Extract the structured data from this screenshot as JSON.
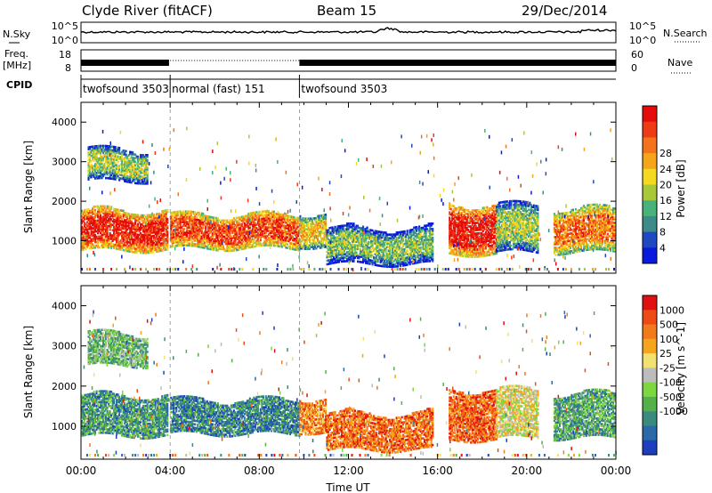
{
  "header": {
    "station": "Clyde River (fitACF)",
    "beam": "Beam 15",
    "date": "29/Dec/2014"
  },
  "left_labels": {
    "nsky": "N.Sky",
    "freq": "Freq.",
    "mhz": "[MHz]",
    "cpid": "CPID"
  },
  "right_labels": {
    "nsearch": "N.Search",
    "nave": "Nave"
  },
  "ticks": {
    "nsky_top": "10^5",
    "nsky_bottom": "10^0",
    "freq_top": "18",
    "freq_bottom": "8",
    "nave_top": "60",
    "nave_bottom": "0",
    "nsearch_top": "10^5",
    "nsearch_bottom": "10^0"
  },
  "cpid": {
    "segments": [
      {
        "label": "twofsound 3503",
        "start": 0,
        "end": 4
      },
      {
        "label": "normal (fast) 151",
        "start": 4,
        "end": 9.8
      },
      {
        "label": "twofsound 3503",
        "start": 9.8,
        "end": 24
      }
    ]
  },
  "chart_data": [
    {
      "type": "heatmap",
      "name": "power",
      "xlabel": "Time UT",
      "ylabel": "Slant Range [km]",
      "x_ticks": [
        "00:00",
        "04:00",
        "08:00",
        "12:00",
        "16:00",
        "20:00",
        "00:00"
      ],
      "xlim": [
        0,
        24
      ],
      "ylim": [
        180,
        4500
      ],
      "y_ticks": [
        1000,
        2000,
        3000,
        4000
      ],
      "colorbar_label": "Power [dB]",
      "colorbar_ticks": [
        "4",
        "8",
        "12",
        "16",
        "20",
        "24",
        "28"
      ],
      "colorbar_colors": [
        "#0a1adc",
        "#1f49c0",
        "#3d8a8a",
        "#49b27a",
        "#a8c838",
        "#f5d820",
        "#f6a41b",
        "#f4721a",
        "#ef3a16",
        "#e50b0b"
      ],
      "regions": [
        {
          "t0": 0,
          "t1": 3.9,
          "r0": 750,
          "r1": 1750,
          "level": 0.92
        },
        {
          "t0": 4.0,
          "t1": 9.8,
          "r0": 800,
          "r1": 1650,
          "level": 0.85
        },
        {
          "t0": 9.8,
          "t1": 11.0,
          "r0": 850,
          "r1": 1700,
          "level": 0.6
        },
        {
          "t0": 11.0,
          "t1": 15.8,
          "r0": 400,
          "r1": 1300,
          "level": 0.4
        },
        {
          "t0": 16.5,
          "t1": 18.6,
          "r0": 650,
          "r1": 1900,
          "level": 0.95
        },
        {
          "t0": 18.6,
          "t1": 20.5,
          "r0": 700,
          "r1": 1900,
          "level": 0.45
        },
        {
          "t0": 21.2,
          "t1": 23.9,
          "r0": 700,
          "r1": 1800,
          "level": 0.75
        },
        {
          "t0": 0.3,
          "t1": 3.0,
          "r0": 2500,
          "r1": 3300,
          "level": 0.45
        }
      ]
    },
    {
      "type": "heatmap",
      "name": "velocity",
      "xlabel": "Time UT",
      "ylabel": "Slant Range [km]",
      "x_ticks": [
        "00:00",
        "04:00",
        "08:00",
        "12:00",
        "16:00",
        "20:00",
        "00:00"
      ],
      "xlim": [
        0,
        24
      ],
      "ylim": [
        180,
        4500
      ],
      "y_ticks": [
        1000,
        2000,
        3000,
        4000
      ],
      "colorbar_label": "Velocity [m s^-1]",
      "colorbar_ticks": [
        "1000",
        "500",
        "100",
        "25",
        "-25",
        "-100",
        "-500",
        "-1000"
      ],
      "colorbar_colors": [
        "#1d3fbf",
        "#2b6aa8",
        "#3b8a7e",
        "#56b04a",
        "#7ed640",
        "#bcbcbc",
        "#f2e070",
        "#f6a41b",
        "#f27a1a",
        "#ee4a16",
        "#e01010"
      ],
      "regions": [
        {
          "t0": 0,
          "t1": 3.9,
          "r0": 750,
          "r1": 1750,
          "level": 0.25
        },
        {
          "t0": 4.0,
          "t1": 9.8,
          "r0": 800,
          "r1": 1650,
          "level": 0.2
        },
        {
          "t0": 9.8,
          "t1": 11.0,
          "r0": 850,
          "r1": 1700,
          "level": 0.75
        },
        {
          "t0": 11.0,
          "t1": 15.8,
          "r0": 400,
          "r1": 1300,
          "level": 0.8
        },
        {
          "t0": 16.5,
          "t1": 18.6,
          "r0": 650,
          "r1": 1900,
          "level": 0.82
        },
        {
          "t0": 18.6,
          "t1": 20.5,
          "r0": 700,
          "r1": 1900,
          "level": 0.55
        },
        {
          "t0": 21.2,
          "t1": 23.9,
          "r0": 700,
          "r1": 1800,
          "level": 0.3
        },
        {
          "t0": 0.3,
          "t1": 3.0,
          "r0": 2500,
          "r1": 3300,
          "level": 0.35
        }
      ]
    }
  ]
}
